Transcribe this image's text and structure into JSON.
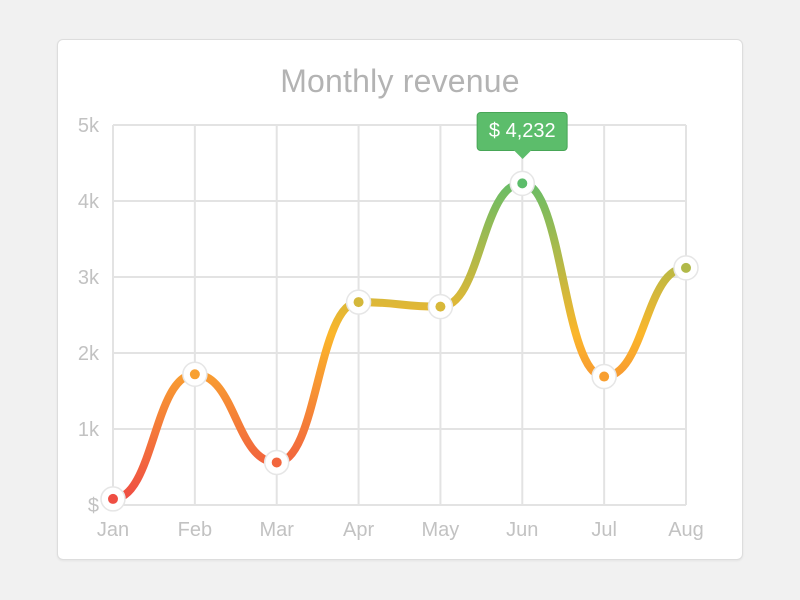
{
  "chart_data": {
    "type": "line",
    "title": "Monthly revenue",
    "categories": [
      "Jan",
      "Feb",
      "Mar",
      "Apr",
      "May",
      "Jun",
      "Jul",
      "Aug"
    ],
    "values": [
      80,
      1720,
      560,
      2670,
      2610,
      4232,
      1690,
      3120
    ],
    "yticks": [
      "$",
      "1k",
      "2k",
      "3k",
      "4k",
      "5k"
    ],
    "ylim": [
      0,
      5000
    ],
    "grid": true,
    "highlight": {
      "category": "Jun",
      "label": "$ 4,232"
    },
    "colors": {
      "low": "#ef4e43",
      "mid": "#fbb62b",
      "high": "#5cbd6b"
    }
  }
}
